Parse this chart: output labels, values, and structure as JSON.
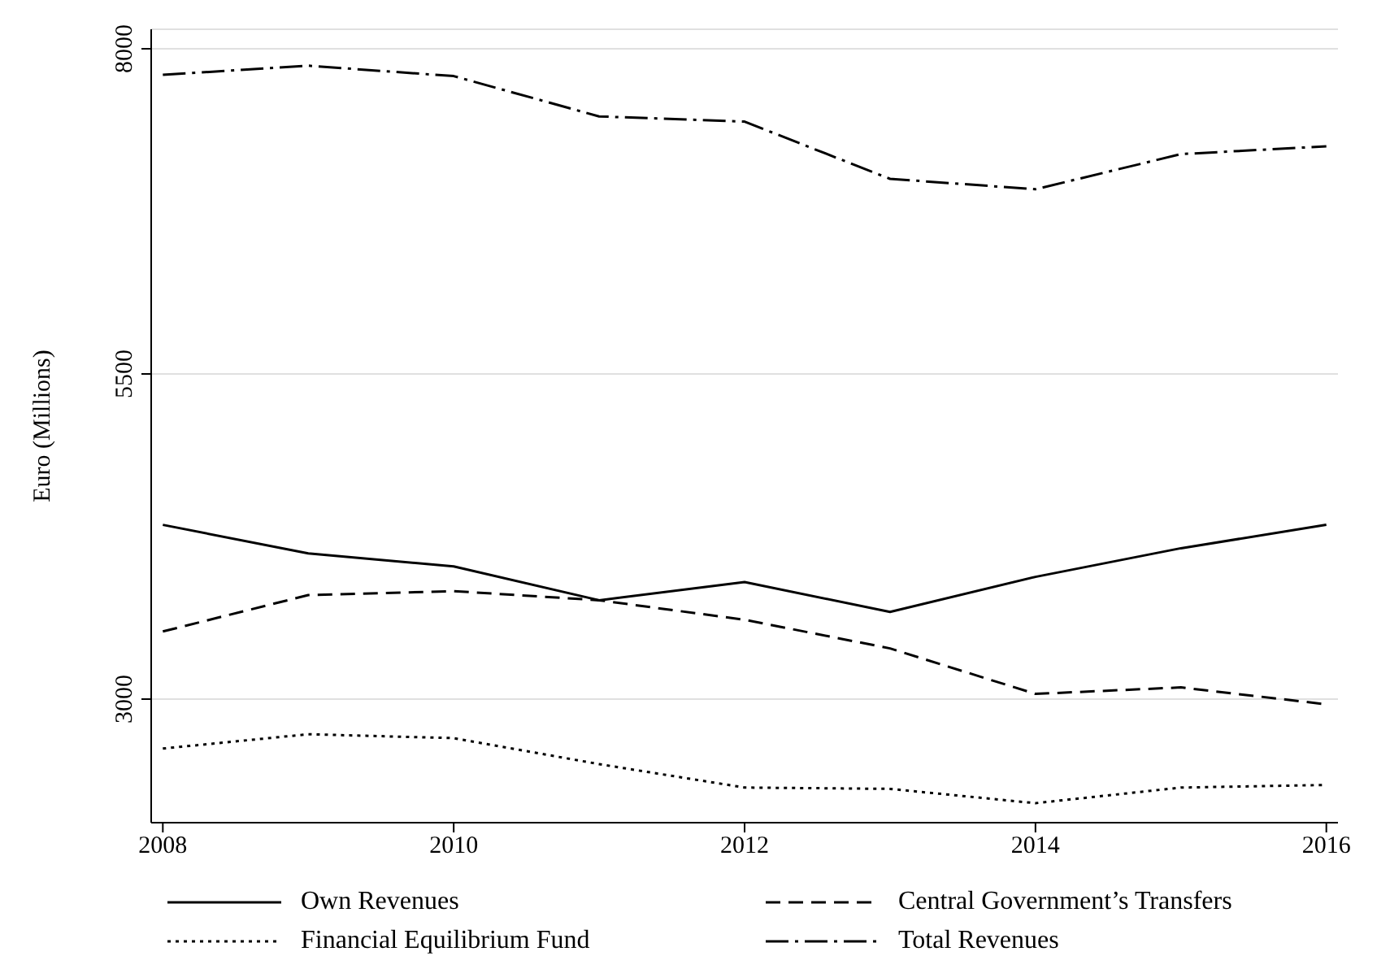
{
  "chart_data": {
    "type": "line",
    "ylabel": "Euro (Millions)",
    "x": [
      2008,
      2009,
      2010,
      2011,
      2012,
      2013,
      2014,
      2015,
      2016
    ],
    "xlim": [
      2007.92,
      2016.08
    ],
    "xticks": [
      2008,
      2010,
      2012,
      2014,
      2016
    ],
    "ylim": [
      2050,
      8150
    ],
    "yticks": [
      3000,
      5500,
      8000
    ],
    "grid": "y",
    "legend": "bottom",
    "marker": "none",
    "series": [
      {
        "name": "Own Revenues",
        "color": "#000000",
        "line_style": "solid",
        "values": [
          4340,
          4120,
          4020,
          3760,
          3900,
          3670,
          3940,
          4160,
          4340
        ]
      },
      {
        "name": "Central Government’s Transfers",
        "color": "#000000",
        "line_style": "dashed",
        "values": [
          3520,
          3800,
          3830,
          3760,
          3610,
          3390,
          3040,
          3090,
          2960
        ]
      },
      {
        "name": "Financial Equilibrium Fund",
        "color": "#000000",
        "line_style": "dotted",
        "values": [
          2620,
          2730,
          2700,
          2500,
          2320,
          2310,
          2200,
          2320,
          2340
        ]
      },
      {
        "name": "Total Revenues",
        "color": "#000000",
        "line_style": "dashdot",
        "values": [
          7800,
          7870,
          7790,
          7480,
          7440,
          7000,
          6920,
          7190,
          7250
        ]
      }
    ]
  }
}
